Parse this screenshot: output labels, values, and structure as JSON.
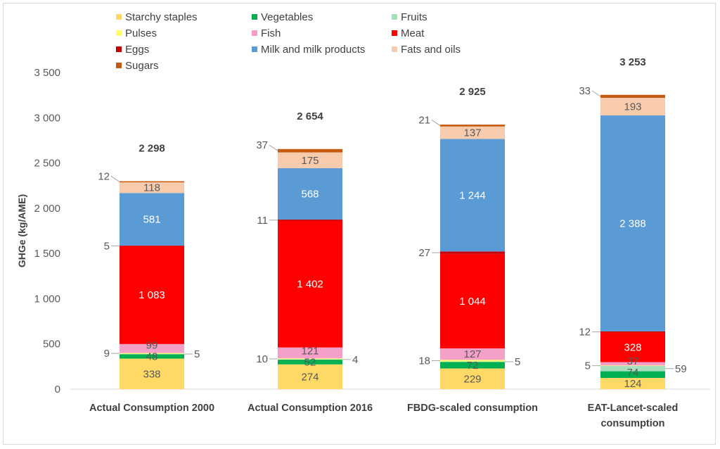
{
  "chart_data": {
    "type": "bar",
    "stacked": true,
    "title": "",
    "xlabel": "",
    "ylabel": "GHGe (kg/AME)",
    "ylim": [
      0,
      3500
    ],
    "yticks": [
      0,
      500,
      1000,
      1500,
      2000,
      2500,
      3000,
      3500
    ],
    "ytick_labels": [
      "0",
      "500",
      "1 000",
      "1 500",
      "2 000",
      "2 500",
      "3 000",
      "3 500"
    ],
    "grid": false,
    "legend_placement": "top",
    "categories": [
      "Actual Consumption 2000",
      "Actual Consumption 2016",
      "FBDG-scaled consumption",
      "EAT-Lancet-scaled consumption"
    ],
    "totals": [
      2298,
      2654,
      2925,
      3253
    ],
    "total_labels": [
      "2 298",
      "2 654",
      "2 925",
      "3 253"
    ],
    "series": [
      {
        "name": "Starchy staples",
        "color": "#FFD966",
        "values": [
          338,
          274,
          229,
          124
        ]
      },
      {
        "name": "Vegetables",
        "color": "#00B050",
        "values": [
          48,
          52,
          72,
          74
        ]
      },
      {
        "name": "Fruits",
        "color": "#A9DFBF",
        "values": [
          5,
          4,
          5,
          59
        ]
      },
      {
        "name": "Pulses",
        "color": "#FFFF66",
        "values": [
          9,
          10,
          18,
          5
        ]
      },
      {
        "name": "Fish",
        "color": "#F4A0C8",
        "values": [
          99,
          121,
          127,
          37
        ]
      },
      {
        "name": "Meat",
        "color": "#FF0000",
        "values": [
          1083,
          1402,
          1044,
          328
        ]
      },
      {
        "name": "Eggs",
        "color": "#C00000",
        "values": [
          5,
          11,
          27,
          12
        ]
      },
      {
        "name": "Milk and milk products",
        "color": "#5B9BD5",
        "values": [
          581,
          568,
          1244,
          2388
        ]
      },
      {
        "name": "Fats and oils",
        "color": "#F8CBAD",
        "values": [
          118,
          175,
          137,
          193
        ]
      },
      {
        "name": "Sugars",
        "color": "#C55A11",
        "values": [
          12,
          37,
          21,
          33
        ]
      }
    ],
    "value_labels": [
      [
        "338",
        "274",
        "229",
        "124"
      ],
      [
        "48",
        "52",
        "72",
        "74"
      ],
      [
        "5",
        "4",
        "5",
        "59"
      ],
      [
        "9",
        "10",
        "18",
        "5"
      ],
      [
        "99",
        "121",
        "127",
        "37"
      ],
      [
        "1 083",
        "1 402",
        "1 044",
        "328"
      ],
      [
        "5",
        "11",
        "27",
        "12"
      ],
      [
        "581",
        "568",
        "1 244",
        "2 388"
      ],
      [
        "118",
        "175",
        "137",
        "193"
      ],
      [
        "12",
        "37",
        "21",
        "33"
      ]
    ]
  }
}
